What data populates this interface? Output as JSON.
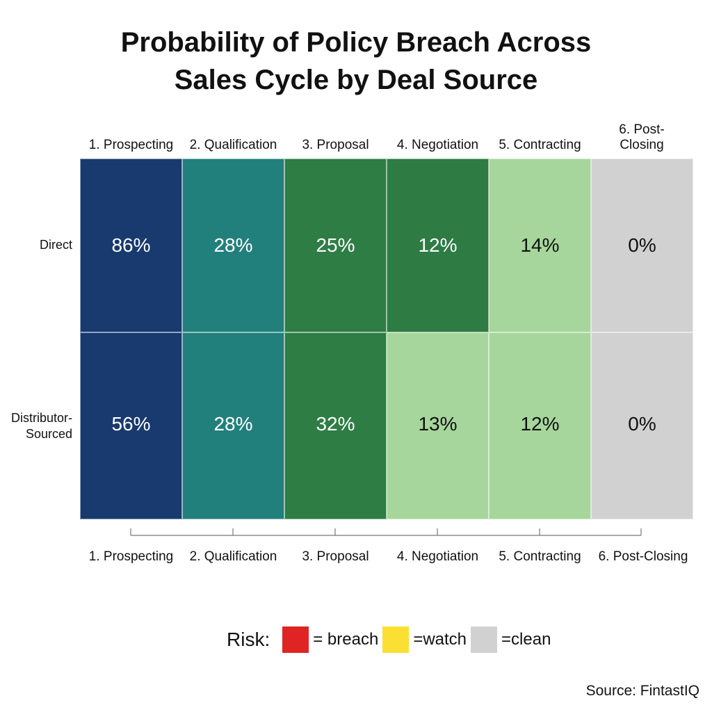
{
  "title": {
    "line1": "Probability of Policy Breach Across",
    "line2": "Sales Cycle by Deal Source"
  },
  "chart_data": {
    "type": "heatmap",
    "title": "Probability of Policy Breach Across Sales Cycle by Deal Source",
    "columns_top": [
      "1. Prospecting",
      "2. Qualification",
      "3. Proposal",
      "4. Negotiation",
      "5. Contracting",
      "6. Post-Closing"
    ],
    "columns_bottom": [
      "1. Prospecting",
      "2. Qualification",
      "3. Proposal",
      "4. Negotiation",
      "5. Contracting",
      "6. Post-Closing"
    ],
    "rows": [
      "Direct",
      "Distributor-Sourced"
    ],
    "values": [
      [
        86,
        28,
        25,
        12,
        14,
        0
      ],
      [
        56,
        28,
        32,
        13,
        12,
        0
      ]
    ],
    "labels": [
      [
        "86%",
        "28%",
        "25%",
        "12%",
        "14%",
        "0%"
      ],
      [
        "56%",
        "28%",
        "32%",
        "13%",
        "12%",
        "0%"
      ]
    ],
    "cell_colors": [
      [
        "#193a6e",
        "#22807c",
        "#2e7d44",
        "#2e7b44",
        "#a6d69b",
        "#d1d1d1"
      ],
      [
        "#193a6e",
        "#22807c",
        "#2e7d44",
        "#a6d69b",
        "#a6d69b",
        "#d1d1d1"
      ]
    ],
    "text_colors": [
      [
        "#ffffff",
        "#ffffff",
        "#ffffff",
        "#ffffff",
        "#111111",
        "#111111"
      ],
      [
        "#ffffff",
        "#ffffff",
        "#ffffff",
        "#111111",
        "#111111",
        "#111111"
      ]
    ]
  },
  "legend": {
    "title": "Risk:",
    "items": [
      {
        "label": "= breach",
        "color": "#e02424"
      },
      {
        "label": "=watch",
        "color": "#fbe033"
      },
      {
        "label": "=clean",
        "color": "#d1d1d1"
      }
    ]
  },
  "source": "Source: FintastIQ"
}
